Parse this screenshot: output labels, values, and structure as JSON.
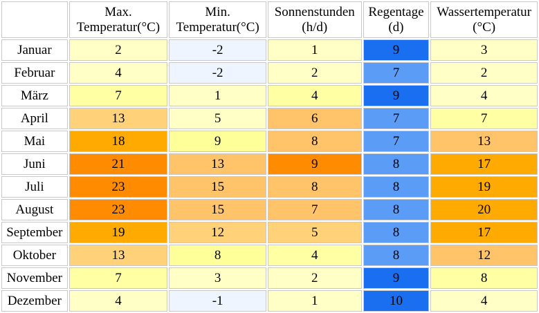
{
  "chart_data": {
    "type": "table",
    "columns": [
      {
        "key": "max",
        "label": [
          "Max.",
          "Temperatur(°C)"
        ]
      },
      {
        "key": "min",
        "label": [
          "Min.",
          "Temperatur(°C)"
        ]
      },
      {
        "key": "sun",
        "label": [
          "Sonnenstunden",
          "(h/d)"
        ]
      },
      {
        "key": "rain",
        "label": [
          "Regentage",
          "(d)"
        ]
      },
      {
        "key": "water",
        "label": [
          "Wassertemperatur",
          "(°C)"
        ]
      }
    ],
    "rows": [
      {
        "month": "Januar",
        "max": 2,
        "min": -2,
        "sun": 1,
        "rain": 9,
        "water": 3
      },
      {
        "month": "Februar",
        "max": 4,
        "min": -2,
        "sun": 2,
        "rain": 7,
        "water": 2
      },
      {
        "month": "März",
        "max": 7,
        "min": 1,
        "sun": 4,
        "rain": 9,
        "water": 4
      },
      {
        "month": "April",
        "max": 13,
        "min": 5,
        "sun": 6,
        "rain": 7,
        "water": 7
      },
      {
        "month": "Mai",
        "max": 18,
        "min": 9,
        "sun": 8,
        "rain": 7,
        "water": 13
      },
      {
        "month": "Juni",
        "max": 21,
        "min": 13,
        "sun": 9,
        "rain": 8,
        "water": 17
      },
      {
        "month": "Juli",
        "max": 23,
        "min": 15,
        "sun": 8,
        "rain": 8,
        "water": 19
      },
      {
        "month": "August",
        "max": 23,
        "min": 15,
        "sun": 7,
        "rain": 8,
        "water": 20
      },
      {
        "month": "September",
        "max": 19,
        "min": 12,
        "sun": 5,
        "rain": 8,
        "water": 17
      },
      {
        "month": "Oktober",
        "max": 13,
        "min": 8,
        "sun": 4,
        "rain": 8,
        "water": 12
      },
      {
        "month": "November",
        "max": 7,
        "min": 3,
        "sun": 2,
        "rain": 9,
        "water": 8
      },
      {
        "month": "Dezember",
        "max": 4,
        "min": -1,
        "sun": 1,
        "rain": 10,
        "water": 4
      }
    ],
    "colors": {
      "cold": "#eef5ff",
      "pale_yellow": "#ffffc6",
      "light_yellow": "#ffffa4",
      "yellow": "#ffff99",
      "light_orange": "#ffd27a",
      "orange": "#ffc46a",
      "strong_orange": "#ffaa00",
      "deep_orange": "#ff8c00",
      "rain_dark": "#1a6ff0",
      "rain_light": "#5a9cf6"
    }
  }
}
